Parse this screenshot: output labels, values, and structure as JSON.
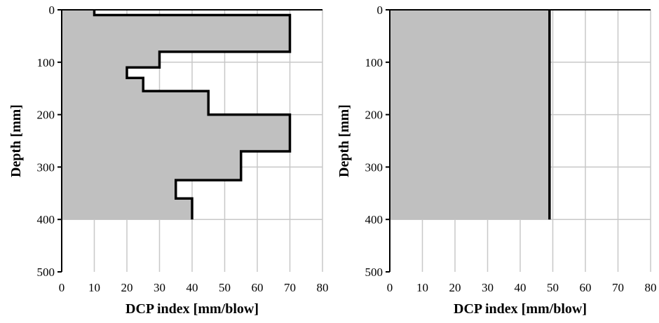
{
  "chart_data": [
    {
      "type": "line",
      "title": "",
      "xlabel": "DCP index [mm/blow]",
      "ylabel": "Depth [mm]",
      "xlim": [
        0,
        80
      ],
      "ylim": [
        0,
        500
      ],
      "y_inverted": true,
      "xticks": [
        0,
        10,
        20,
        30,
        40,
        50,
        60,
        70,
        80
      ],
      "yticks": [
        0,
        100,
        200,
        300,
        400,
        500
      ],
      "grid": true,
      "fill_color": "#c0c0c0",
      "line_color": "#000000",
      "series": [
        {
          "step_profile": [
            {
              "dcp": 10,
              "top": 0,
              "bottom": 10
            },
            {
              "dcp": 70,
              "top": 10,
              "bottom": 80
            },
            {
              "dcp": 30,
              "top": 80,
              "bottom": 110
            },
            {
              "dcp": 20,
              "top": 110,
              "bottom": 130
            },
            {
              "dcp": 25,
              "top": 130,
              "bottom": 155
            },
            {
              "dcp": 45,
              "top": 155,
              "bottom": 200
            },
            {
              "dcp": 70,
              "top": 200,
              "bottom": 270
            },
            {
              "dcp": 55,
              "top": 270,
              "bottom": 325
            },
            {
              "dcp": 35,
              "top": 325,
              "bottom": 360
            },
            {
              "dcp": 40,
              "top": 360,
              "bottom": 400
            }
          ]
        }
      ]
    },
    {
      "type": "line",
      "title": "",
      "xlabel": "DCP index [mm/blow]",
      "ylabel": "Depth [mm]",
      "xlim": [
        0,
        80
      ],
      "ylim": [
        0,
        500
      ],
      "y_inverted": true,
      "xticks": [
        0,
        10,
        20,
        30,
        40,
        50,
        60,
        70,
        80
      ],
      "yticks": [
        0,
        100,
        200,
        300,
        400,
        500
      ],
      "grid": true,
      "fill_color": "#c0c0c0",
      "line_color": "#000000",
      "series": [
        {
          "step_profile": [
            {
              "dcp": 49,
              "top": 0,
              "bottom": 400
            }
          ]
        }
      ]
    }
  ]
}
